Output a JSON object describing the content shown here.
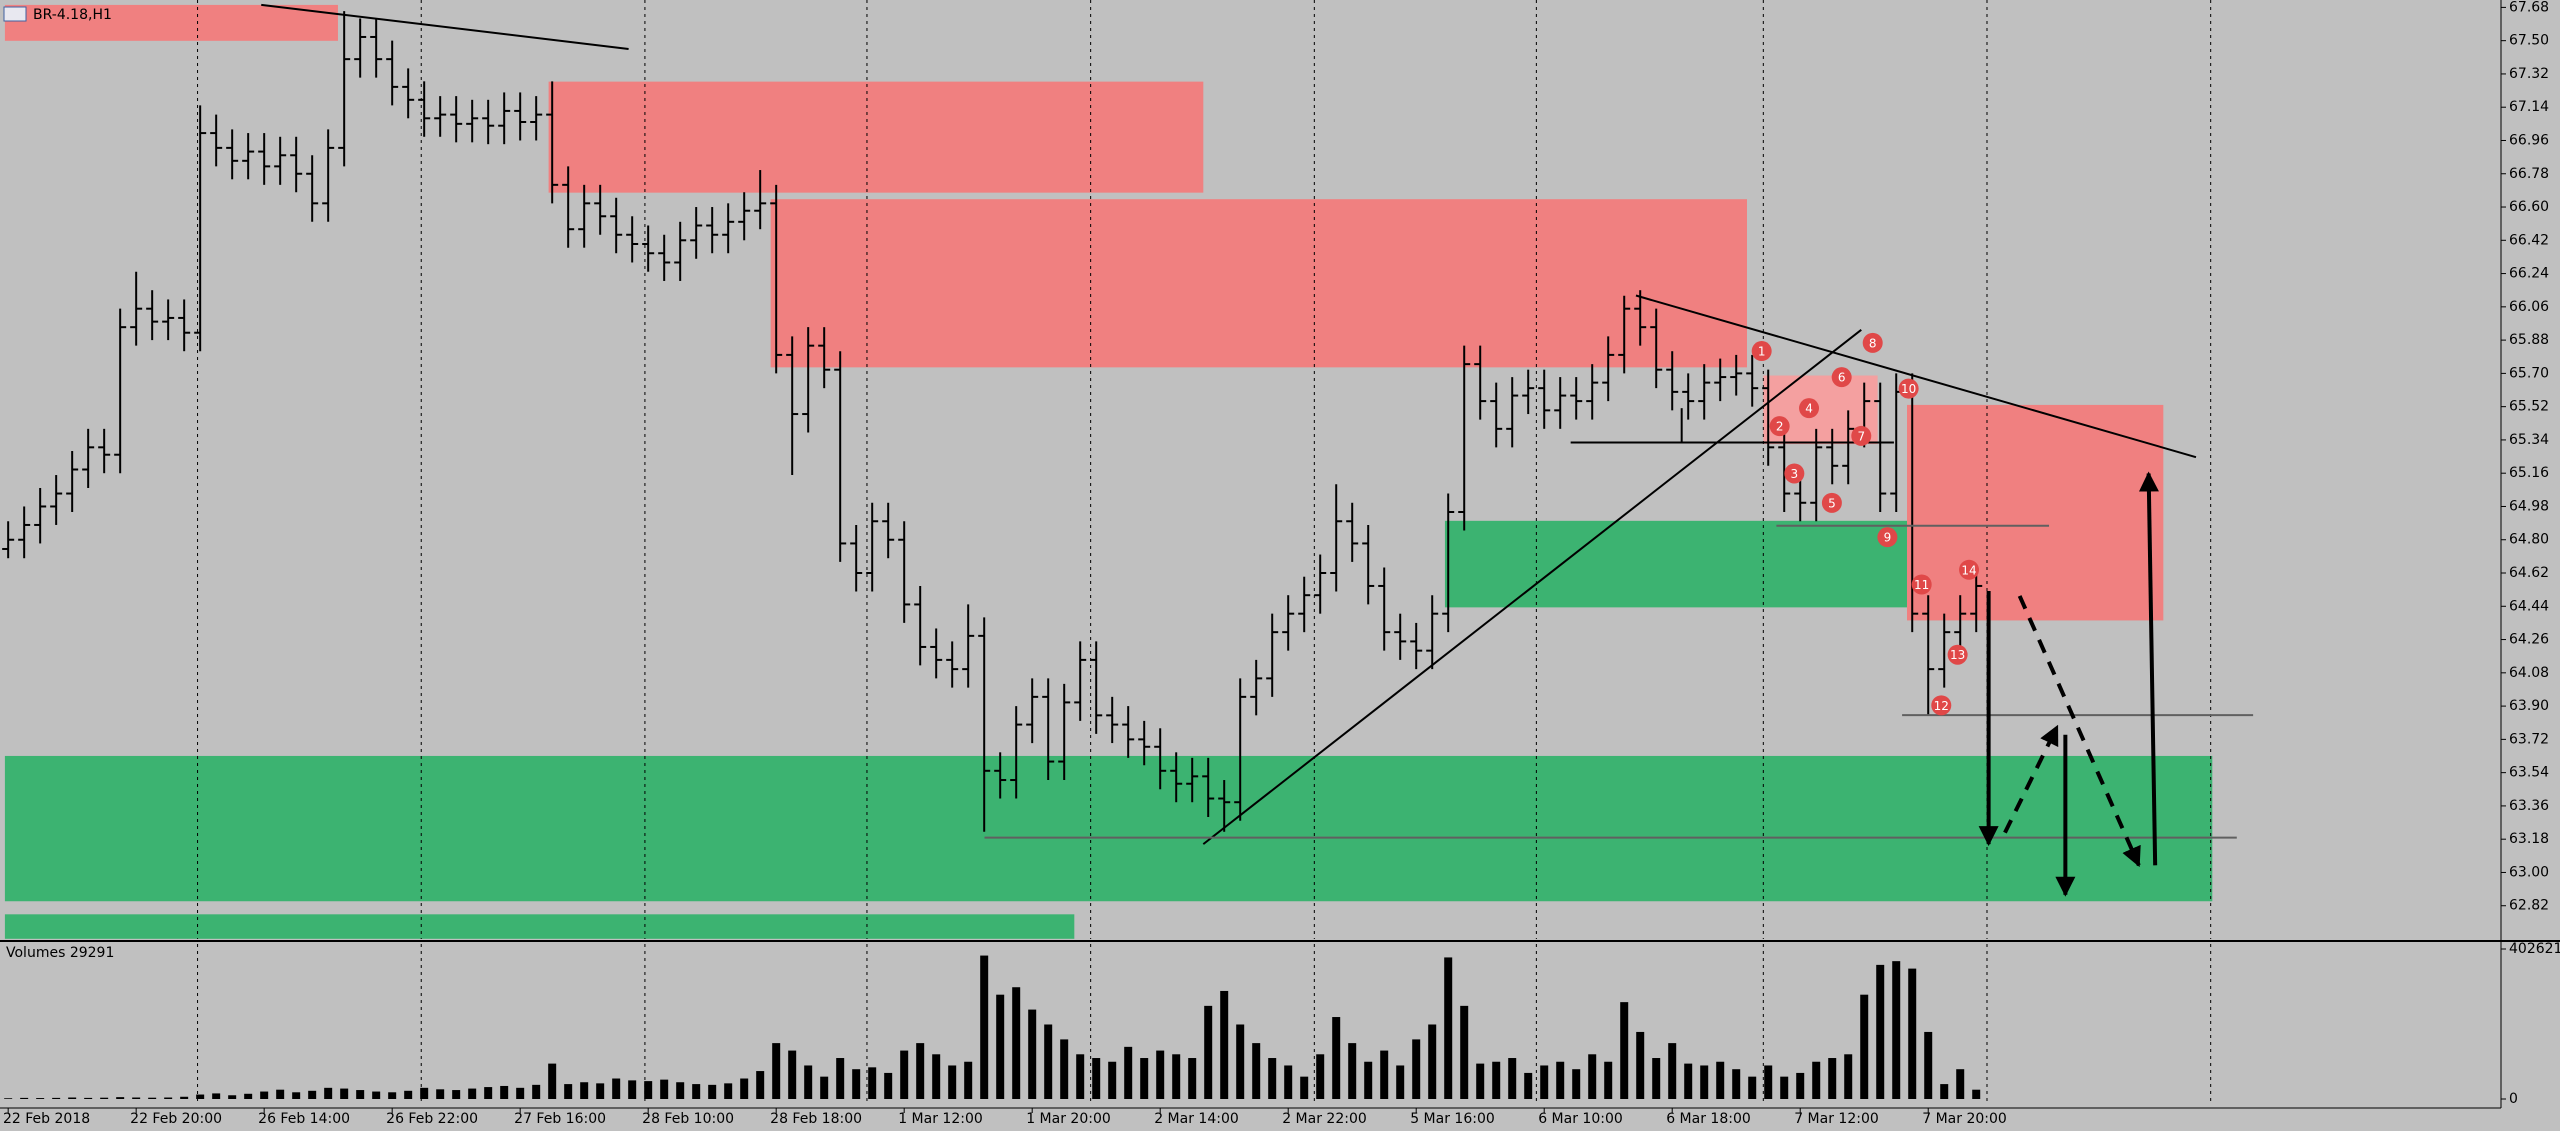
{
  "chart_data": [
    {
      "type": "ohlc",
      "title": "BR-4.18,H1",
      "color": "#000000",
      "grid": true,
      "ylim": [
        62.64,
        67.72
      ],
      "yticks": [
        62.82,
        {
          "value": 63,
          "label": "63.00"
        },
        63.18,
        63.36,
        63.54,
        63.72,
        {
          "value": 63.9,
          "label": "63.90"
        },
        64.08,
        64.26,
        64.44,
        64.62,
        {
          "value": 64.8,
          "label": "64.80"
        },
        64.98,
        65.16,
        65.34,
        65.52,
        {
          "value": 65.7,
          "label": "65.70"
        },
        65.88,
        66.06,
        66.24,
        66.42,
        {
          "value": 66.6,
          "label": "66.60"
        },
        66.78,
        66.96,
        67.14,
        67.32,
        {
          "value": 67.5,
          "label": "67.50"
        },
        67.68
      ],
      "open": [
        64.75,
        64.8,
        64.88,
        64.98,
        65.05,
        65.18,
        65.3,
        65.26,
        65.95,
        66.05,
        65.98,
        66.0,
        65.92,
        67.0,
        66.92,
        66.85,
        66.9,
        66.82,
        66.88,
        66.78,
        66.62,
        66.92,
        67.4,
        67.52,
        67.4,
        67.25,
        67.18,
        67.08,
        67.1,
        67.05,
        67.08,
        67.04,
        67.12,
        67.06,
        67.1,
        66.72,
        66.48,
        66.62,
        66.55,
        66.45,
        66.4,
        66.35,
        66.3,
        66.42,
        66.5,
        66.45,
        66.52,
        66.58,
        66.62,
        65.8,
        65.48,
        65.85,
        65.72,
        64.78,
        64.62,
        64.9,
        64.8,
        64.45,
        64.22,
        64.15,
        64.1,
        64.28,
        63.55,
        63.5,
        63.8,
        63.95,
        63.6,
        63.92,
        64.15,
        63.85,
        63.8,
        63.72,
        63.68,
        63.55,
        63.48,
        63.52,
        63.4,
        63.38,
        63.95,
        64.05,
        64.3,
        64.4,
        64.5,
        64.62,
        64.9,
        64.78,
        64.55,
        64.3,
        64.25,
        64.2,
        64.4,
        64.95,
        65.75,
        65.55,
        65.4,
        65.58,
        65.62,
        65.5,
        65.58,
        65.55,
        65.65,
        65.8,
        66.05,
        65.95,
        65.72,
        65.6,
        65.55,
        65.65,
        65.68,
        65.7,
        65.62,
        65.3,
        65.05,
        65.0,
        65.3,
        65.2,
        65.4,
        65.55,
        65.05,
        65.6,
        64.4,
        64.1,
        64.3,
        64.4
      ],
      "high": [
        64.9,
        64.98,
        65.08,
        65.15,
        65.28,
        65.4,
        65.4,
        66.05,
        66.25,
        66.15,
        66.1,
        66.1,
        67.15,
        67.1,
        67.02,
        67.0,
        67.0,
        66.98,
        66.98,
        66.88,
        67.02,
        67.66,
        67.62,
        67.62,
        67.5,
        67.35,
        67.28,
        67.2,
        67.2,
        67.18,
        67.18,
        67.22,
        67.22,
        67.2,
        67.28,
        66.82,
        66.72,
        66.72,
        66.65,
        66.55,
        66.5,
        66.45,
        66.52,
        66.6,
        66.6,
        66.62,
        66.68,
        66.8,
        66.72,
        65.9,
        65.95,
        65.95,
        65.82,
        64.88,
        65.0,
        65.0,
        64.9,
        64.55,
        64.32,
        64.25,
        64.45,
        64.38,
        63.65,
        63.9,
        64.05,
        64.05,
        64.02,
        64.25,
        64.25,
        63.95,
        63.9,
        63.82,
        63.78,
        63.65,
        63.62,
        63.62,
        63.5,
        64.05,
        64.15,
        64.4,
        64.5,
        64.6,
        64.72,
        65.1,
        65.0,
        64.88,
        64.65,
        64.4,
        64.35,
        64.5,
        65.05,
        65.85,
        65.85,
        65.65,
        65.68,
        65.72,
        65.72,
        65.68,
        65.68,
        65.75,
        65.9,
        66.12,
        66.15,
        66.05,
        65.82,
        65.7,
        65.75,
        65.78,
        65.8,
        65.8,
        65.72,
        65.4,
        65.15,
        65.4,
        65.4,
        65.5,
        65.65,
        65.65,
        65.7,
        65.7,
        64.5,
        64.4,
        64.5,
        64.65
      ],
      "low": [
        64.7,
        64.7,
        64.78,
        64.88,
        64.95,
        65.08,
        65.16,
        65.16,
        65.85,
        65.88,
        65.88,
        65.82,
        65.82,
        66.82,
        66.75,
        66.75,
        66.72,
        66.72,
        66.68,
        66.52,
        66.52,
        66.82,
        67.3,
        67.3,
        67.15,
        67.08,
        66.98,
        66.98,
        66.95,
        66.95,
        66.94,
        66.94,
        66.96,
        66.96,
        66.62,
        66.38,
        66.38,
        66.45,
        66.35,
        66.3,
        66.25,
        66.2,
        66.2,
        66.32,
        66.35,
        66.35,
        66.42,
        66.48,
        65.7,
        65.15,
        65.38,
        65.62,
        64.68,
        64.52,
        64.52,
        64.7,
        64.35,
        64.12,
        64.05,
        64.0,
        64.0,
        63.22,
        63.4,
        63.4,
        63.7,
        63.5,
        63.5,
        63.82,
        63.75,
        63.7,
        63.62,
        63.58,
        63.45,
        63.38,
        63.38,
        63.3,
        63.22,
        63.28,
        63.85,
        63.95,
        64.2,
        64.3,
        64.4,
        64.52,
        64.68,
        64.45,
        64.2,
        64.15,
        64.1,
        64.1,
        64.3,
        64.85,
        65.45,
        65.3,
        65.3,
        65.48,
        65.4,
        65.4,
        65.45,
        65.45,
        65.55,
        65.7,
        65.85,
        65.62,
        65.5,
        65.45,
        65.45,
        65.55,
        65.58,
        65.52,
        65.2,
        64.95,
        64.9,
        64.9,
        65.1,
        65.1,
        65.3,
        64.95,
        64.95,
        64.3,
        63.85,
        64.0,
        64.2,
        64.3
      ],
      "close": [
        64.8,
        64.88,
        64.98,
        65.05,
        65.18,
        65.3,
        65.26,
        65.95,
        66.05,
        65.98,
        66.0,
        65.92,
        67.0,
        66.92,
        66.85,
        66.9,
        66.82,
        66.88,
        66.78,
        66.62,
        66.92,
        67.4,
        67.52,
        67.4,
        67.25,
        67.18,
        67.08,
        67.1,
        67.05,
        67.08,
        67.04,
        67.12,
        67.06,
        67.1,
        66.72,
        66.48,
        66.62,
        66.55,
        66.45,
        66.4,
        66.35,
        66.3,
        66.42,
        66.5,
        66.45,
        66.52,
        66.58,
        66.62,
        65.8,
        65.48,
        65.85,
        65.72,
        64.78,
        64.62,
        64.9,
        64.8,
        64.45,
        64.22,
        64.15,
        64.1,
        64.28,
        63.55,
        63.5,
        63.8,
        63.95,
        63.6,
        63.92,
        64.15,
        63.85,
        63.8,
        63.72,
        63.68,
        63.55,
        63.48,
        63.52,
        63.4,
        63.38,
        63.95,
        64.05,
        64.3,
        64.4,
        64.5,
        64.62,
        64.9,
        64.78,
        64.55,
        64.3,
        64.25,
        64.2,
        64.4,
        64.95,
        65.75,
        65.55,
        65.4,
        65.58,
        65.62,
        65.5,
        65.58,
        65.55,
        65.65,
        65.8,
        66.05,
        65.95,
        65.72,
        65.6,
        65.55,
        65.65,
        65.68,
        65.7,
        65.62,
        65.3,
        65.05,
        65.0,
        65.3,
        65.2,
        65.4,
        65.55,
        65.05,
        65.6,
        64.4,
        64.1,
        64.3,
        64.4,
        64.55
      ],
      "annotations": [
        "1",
        "2",
        "3",
        "4",
        "5",
        "6",
        "7",
        "8",
        "9",
        "10",
        "11",
        "12",
        "13",
        "14"
      ]
    },
    {
      "type": "bar",
      "title": "Volumes 29291",
      "color": "#000000",
      "ylim": [
        0,
        402621
      ],
      "yticks": [
        0,
        402621
      ],
      "categories": [
        "22 Feb 2018",
        null,
        null,
        null,
        null,
        null,
        null,
        null,
        "22 Feb 20:00",
        null,
        null,
        null,
        null,
        null,
        null,
        null,
        "26 Feb 14:00",
        null,
        null,
        null,
        null,
        null,
        null,
        null,
        "26 Feb 22:00",
        null,
        null,
        null,
        null,
        null,
        null,
        null,
        "27 Feb 16:00",
        null,
        null,
        null,
        null,
        null,
        null,
        null,
        "28 Feb 10:00",
        null,
        null,
        null,
        null,
        null,
        null,
        null,
        "28 Feb 18:00",
        null,
        null,
        null,
        null,
        null,
        null,
        null,
        "1 Mar 12:00",
        null,
        null,
        null,
        null,
        null,
        null,
        null,
        "1 Mar 20:00",
        null,
        null,
        null,
        null,
        null,
        null,
        null,
        "2 Mar 14:00",
        null,
        null,
        null,
        null,
        null,
        null,
        null,
        "2 Mar 22:00",
        null,
        null,
        null,
        null,
        null,
        null,
        null,
        "5 Mar 16:00",
        null,
        null,
        null,
        null,
        null,
        null,
        null,
        "6 Mar 10:00",
        null,
        null,
        null,
        null,
        null,
        null,
        null,
        "6 Mar 18:00",
        null,
        null,
        null,
        null,
        null,
        null,
        null,
        "7 Mar 12:00",
        null,
        null,
        null,
        null,
        null,
        null,
        null,
        "7 Mar 20:00",
        null,
        null,
        null
      ],
      "values": [
        2000,
        3000,
        2500,
        3000,
        4000,
        3000,
        3500,
        5000,
        4000,
        3500,
        4000,
        6000,
        12000,
        15000,
        10000,
        14000,
        20000,
        25000,
        18000,
        22000,
        30000,
        28000,
        24000,
        20000,
        18000,
        22000,
        30000,
        26000,
        24000,
        28000,
        32000,
        35000,
        30000,
        38000,
        95000,
        40000,
        45000,
        42000,
        55000,
        50000,
        48000,
        52000,
        45000,
        40000,
        38000,
        42000,
        55000,
        75000,
        150000,
        130000,
        90000,
        60000,
        110000,
        80000,
        85000,
        70000,
        130000,
        150000,
        120000,
        90000,
        100000,
        385000,
        280000,
        300000,
        240000,
        200000,
        160000,
        120000,
        110000,
        100000,
        140000,
        110000,
        130000,
        120000,
        110000,
        250000,
        290000,
        200000,
        150000,
        110000,
        90000,
        60000,
        120000,
        220000,
        150000,
        100000,
        130000,
        90000,
        160000,
        200000,
        380000,
        250000,
        95000,
        100000,
        110000,
        70000,
        90000,
        100000,
        80000,
        120000,
        100000,
        260000,
        180000,
        110000,
        150000,
        95000,
        90000,
        100000,
        80000,
        60000,
        90000,
        60000,
        70000,
        100000,
        110000,
        120000,
        280000,
        360000,
        370000,
        350000,
        180000,
        40000,
        80000,
        25000
      ]
    }
  ]
}
